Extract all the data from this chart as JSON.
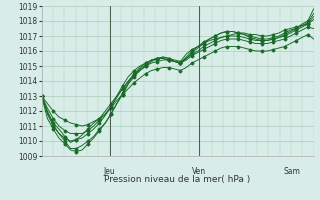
{
  "title": "",
  "xlabel": "Pression niveau de la mer( hPa )",
  "ylabel": "",
  "bg_color": "#d8ede8",
  "grid_color": "#aaccbb",
  "line_color": "#1a6b2a",
  "marker_color": "#1a6b2a",
  "ylim": [
    1009,
    1019
  ],
  "yticks": [
    1009,
    1010,
    1011,
    1012,
    1013,
    1014,
    1015,
    1016,
    1017,
    1018,
    1019
  ],
  "day_labels": [
    "Jeu",
    "Ven",
    "Sam"
  ],
  "day_positions": [
    0.25,
    0.58,
    0.92
  ],
  "series": [
    [
      1013.0,
      1012.0,
      1011.2,
      1010.8,
      1010.3,
      1009.9,
      1010.1,
      1010.4,
      1010.8,
      1011.2,
      1011.5,
      1012.0,
      1012.5,
      1013.0,
      1013.5,
      1014.0,
      1014.5,
      1014.9,
      1015.2,
      1015.4,
      1015.5,
      1015.6,
      1015.5,
      1015.4,
      1015.3,
      1015.8,
      1016.1,
      1016.3,
      1016.5,
      1016.7,
      1016.8,
      1016.9,
      1017.0,
      1017.1,
      1017.2,
      1017.2,
      1017.1,
      1017.1,
      1017.0,
      1017.0,
      1017.1,
      1017.2,
      1017.4,
      1017.5,
      1017.6,
      1017.7,
      1017.8,
      1018.1
    ],
    [
      1013.0,
      1011.8,
      1011.0,
      1010.5,
      1010.0,
      1009.5,
      1009.5,
      1009.7,
      1010.0,
      1010.3,
      1010.8,
      1011.2,
      1011.8,
      1012.5,
      1013.1,
      1013.8,
      1014.3,
      1014.7,
      1015.0,
      1015.3,
      1015.5,
      1015.6,
      1015.5,
      1015.3,
      1015.2,
      1015.6,
      1016.0,
      1016.3,
      1016.6,
      1016.8,
      1017.0,
      1017.2,
      1017.3,
      1017.3,
      1017.2,
      1017.1,
      1017.0,
      1016.9,
      1016.8,
      1016.8,
      1016.9,
      1017.0,
      1017.2,
      1017.4,
      1017.5,
      1017.7,
      1017.9,
      1018.5
    ],
    [
      1013.0,
      1011.5,
      1010.8,
      1010.2,
      1009.8,
      1009.4,
      1009.3,
      1009.4,
      1009.8,
      1010.2,
      1010.7,
      1011.2,
      1011.8,
      1012.5,
      1013.2,
      1013.9,
      1014.4,
      1014.8,
      1015.1,
      1015.4,
      1015.5,
      1015.5,
      1015.4,
      1015.3,
      1015.2,
      1015.5,
      1015.9,
      1016.2,
      1016.5,
      1016.8,
      1017.0,
      1017.2,
      1017.3,
      1017.3,
      1017.2,
      1017.1,
      1016.9,
      1016.8,
      1016.7,
      1016.7,
      1016.8,
      1016.9,
      1017.1,
      1017.3,
      1017.5,
      1017.8,
      1018.0,
      1018.8
    ],
    [
      1013.0,
      1011.9,
      1011.1,
      1010.5,
      1010.2,
      1010.0,
      1010.1,
      1010.2,
      1010.5,
      1010.8,
      1011.2,
      1011.7,
      1012.3,
      1013.0,
      1013.7,
      1014.3,
      1014.7,
      1015.0,
      1015.2,
      1015.4,
      1015.5,
      1015.5,
      1015.4,
      1015.3,
      1015.2,
      1015.5,
      1015.8,
      1016.0,
      1016.3,
      1016.5,
      1016.7,
      1016.9,
      1017.0,
      1017.0,
      1017.0,
      1016.9,
      1016.8,
      1016.7,
      1016.7,
      1016.7,
      1016.8,
      1016.9,
      1017.0,
      1017.2,
      1017.4,
      1017.6,
      1017.8,
      1018.3
    ],
    [
      1013.0,
      1012.2,
      1011.5,
      1011.0,
      1010.7,
      1010.5,
      1010.5,
      1010.5,
      1010.7,
      1011.0,
      1011.4,
      1011.8,
      1012.3,
      1012.9,
      1013.5,
      1014.0,
      1014.4,
      1014.7,
      1015.0,
      1015.2,
      1015.3,
      1015.4,
      1015.4,
      1015.3,
      1015.2,
      1015.4,
      1015.7,
      1015.9,
      1016.1,
      1016.3,
      1016.5,
      1016.7,
      1016.8,
      1016.8,
      1016.8,
      1016.7,
      1016.6,
      1016.5,
      1016.5,
      1016.5,
      1016.6,
      1016.7,
      1016.8,
      1017.0,
      1017.2,
      1017.4,
      1017.6,
      1017.5
    ],
    [
      1013.0,
      1012.5,
      1012.0,
      1011.6,
      1011.4,
      1011.2,
      1011.1,
      1011.0,
      1011.1,
      1011.3,
      1011.5,
      1011.8,
      1012.2,
      1012.7,
      1013.1,
      1013.5,
      1013.9,
      1014.2,
      1014.5,
      1014.7,
      1014.8,
      1014.9,
      1014.9,
      1014.8,
      1014.7,
      1014.9,
      1015.2,
      1015.4,
      1015.6,
      1015.8,
      1016.0,
      1016.2,
      1016.3,
      1016.3,
      1016.3,
      1016.2,
      1016.1,
      1016.0,
      1016.0,
      1016.0,
      1016.1,
      1016.2,
      1016.3,
      1016.5,
      1016.7,
      1016.9,
      1017.1,
      1016.8
    ]
  ]
}
